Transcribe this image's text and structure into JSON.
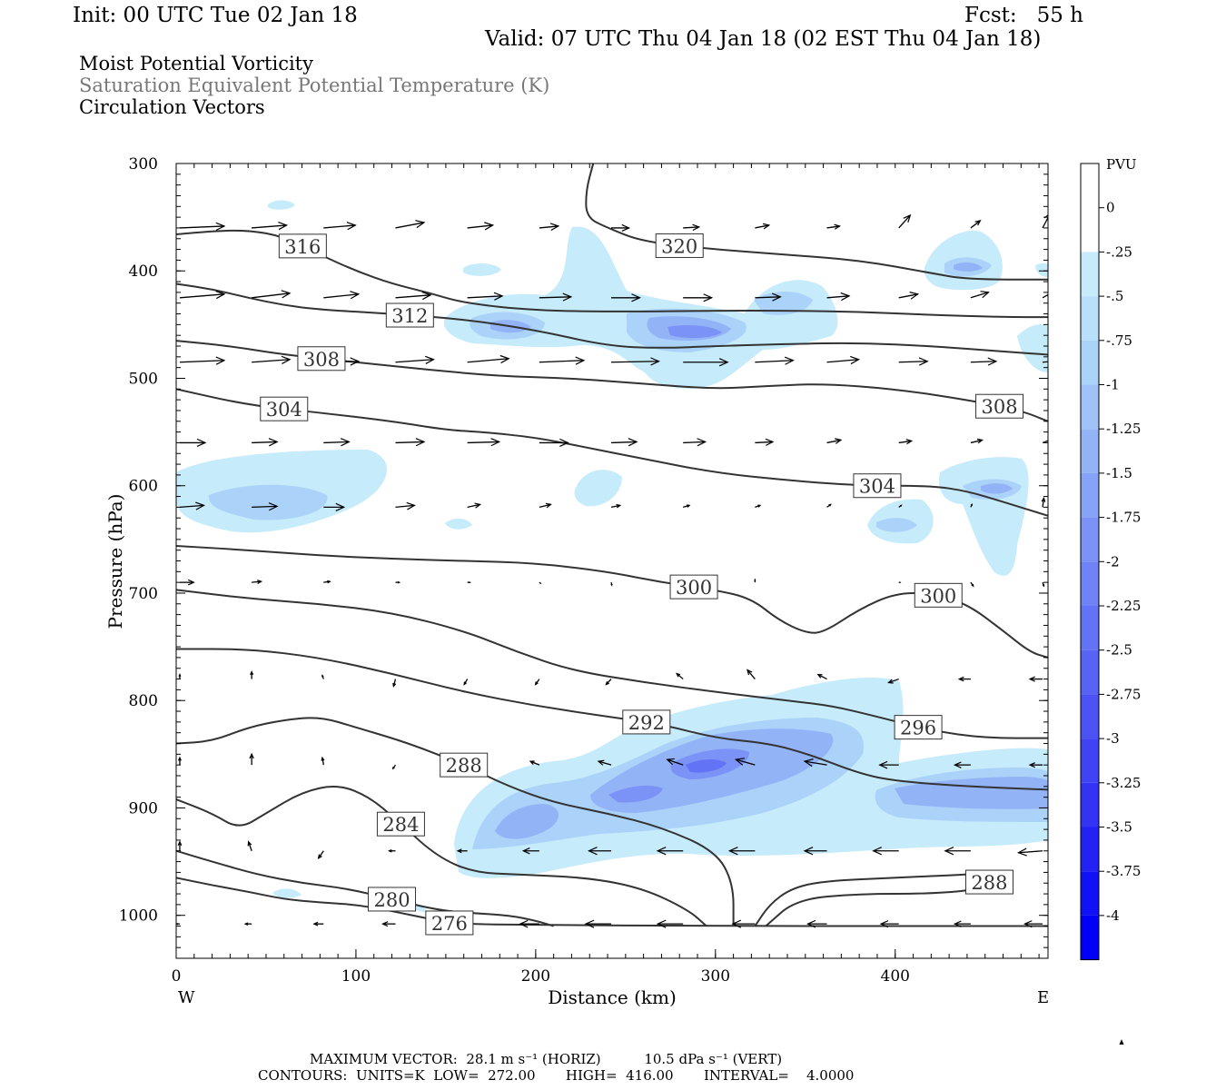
{
  "header": {
    "init": "Init: 00 UTC Tue 02 Jan 18",
    "fcst": "Fcst:   55 h",
    "valid": "Valid: 07 UTC Thu 04 Jan 18 (02 EST Thu 04 Jan 18)"
  },
  "fields": {
    "line1": "Moist Potential Vorticity",
    "line2": "Saturation Equivalent Potential Temperature (K)",
    "line3": "Circulation Vectors"
  },
  "chart_data": {
    "type": "contour",
    "xlabel": "Distance (km)",
    "ylabel": "Pressure (hPa)",
    "xlim": [
      0,
      485
    ],
    "ylim": [
      1040,
      300
    ],
    "x_ticks": [
      0,
      100,
      200,
      300,
      400
    ],
    "y_ticks": [
      300,
      400,
      500,
      600,
      700,
      800,
      900,
      1000
    ],
    "left_end_label": "W",
    "right_end_label": "E",
    "colorbar": {
      "unit": "PVU",
      "labels": [
        "0",
        "-.25",
        "-.5",
        "-.75",
        "-1",
        "-1.25",
        "-1.5",
        "-1.75",
        "-2",
        "-2.25",
        "-2.5",
        "-2.75",
        "-3",
        "-3.25",
        "-3.5",
        "-3.75",
        "-4"
      ],
      "colors": [
        "#ffffff",
        "#ffffff",
        "#c6ebfb",
        "#b9e0fa",
        "#abd2f9",
        "#9fc3f8",
        "#93b3f7",
        "#87a3f7",
        "#7b93f6",
        "#6f83f6",
        "#6373f5",
        "#5763f5",
        "#4b53f4",
        "#3f43f4",
        "#3333f4",
        "#2222f5",
        "#1111f6",
        "#0000f8"
      ]
    },
    "theta_contours": [
      {
        "label": "276",
        "points": [
          [
            0,
            965
          ],
          [
            20,
            972
          ],
          [
            40,
            978
          ],
          [
            60,
            985
          ],
          [
            80,
            988
          ],
          [
            100,
            990
          ],
          [
            120,
            996
          ],
          [
            140,
            1003
          ],
          [
            155,
            1008
          ],
          [
            200,
            1009
          ],
          [
            300,
            1010
          ],
          [
            400,
            1010
          ],
          [
            485,
            1010
          ]
        ]
      },
      {
        "label": "280",
        "points": [
          [
            0,
            940
          ],
          [
            20,
            950
          ],
          [
            45,
            962
          ],
          [
            70,
            970
          ],
          [
            95,
            975
          ],
          [
            120,
            985
          ],
          [
            145,
            995
          ],
          [
            165,
            998
          ],
          [
            185,
            1000
          ],
          [
            200,
            1005
          ],
          [
            210,
            1010
          ]
        ]
      },
      {
        "label": "284",
        "points": [
          [
            0,
            892
          ],
          [
            20,
            905
          ],
          [
            35,
            920
          ],
          [
            50,
            905
          ],
          [
            70,
            885
          ],
          [
            90,
            878
          ],
          [
            108,
            890
          ],
          [
            125,
            915
          ],
          [
            145,
            945
          ],
          [
            165,
            960
          ],
          [
            190,
            962
          ],
          [
            230,
            965
          ],
          [
            260,
            975
          ],
          [
            285,
            995
          ],
          [
            295,
            1010
          ]
        ]
      },
      {
        "label": "288",
        "points": [
          [
            0,
            840
          ],
          [
            20,
            838
          ],
          [
            40,
            825
          ],
          [
            60,
            818
          ],
          [
            80,
            815
          ],
          [
            100,
            825
          ],
          [
            130,
            840
          ],
          [
            160,
            860
          ],
          [
            185,
            880
          ],
          [
            210,
            895
          ],
          [
            240,
            905
          ],
          [
            270,
            918
          ],
          [
            300,
            940
          ],
          [
            310,
            970
          ],
          [
            310,
            1010
          ]
        ]
      },
      {
        "label": "288",
        "points": [
          [
            322,
            1010
          ],
          [
            330,
            990
          ],
          [
            342,
            975
          ],
          [
            360,
            968
          ],
          [
            400,
            965
          ],
          [
            440,
            962
          ],
          [
            453,
            960
          ],
          [
            452,
            975
          ],
          [
            420,
            980
          ],
          [
            380,
            980
          ],
          [
            345,
            985
          ],
          [
            328,
            1010
          ]
        ]
      },
      {
        "label": "292",
        "points": [
          [
            0,
            752
          ],
          [
            40,
            752
          ],
          [
            80,
            760
          ],
          [
            120,
            775
          ],
          [
            160,
            792
          ],
          [
            200,
            805
          ],
          [
            240,
            815
          ],
          [
            270,
            822
          ],
          [
            300,
            835
          ],
          [
            330,
            840
          ],
          [
            352,
            850
          ],
          [
            380,
            868
          ],
          [
            400,
            875
          ],
          [
            440,
            880
          ],
          [
            485,
            883
          ]
        ]
      },
      {
        "label": "296",
        "points": [
          [
            0,
            697
          ],
          [
            40,
            705
          ],
          [
            80,
            710
          ],
          [
            120,
            718
          ],
          [
            160,
            735
          ],
          [
            190,
            755
          ],
          [
            220,
            772
          ],
          [
            260,
            783
          ],
          [
            300,
            792
          ],
          [
            340,
            800
          ],
          [
            365,
            805
          ],
          [
            390,
            815
          ],
          [
            420,
            828
          ],
          [
            450,
            835
          ],
          [
            485,
            835
          ]
        ]
      },
      {
        "label": "300",
        "points": [
          [
            0,
            656
          ],
          [
            40,
            660
          ],
          [
            80,
            665
          ],
          [
            120,
            668
          ],
          [
            160,
            670
          ],
          [
            200,
            672
          ],
          [
            240,
            680
          ],
          [
            270,
            690
          ],
          [
            300,
            697
          ],
          [
            320,
            705
          ],
          [
            335,
            725
          ],
          [
            350,
            737
          ],
          [
            360,
            737
          ],
          [
            380,
            715
          ],
          [
            400,
            700
          ],
          [
            420,
            700
          ],
          [
            440,
            710
          ],
          [
            460,
            735
          ],
          [
            475,
            755
          ],
          [
            485,
            760
          ]
        ]
      },
      {
        "label": "304",
        "points": [
          [
            0,
            510
          ],
          [
            40,
            525
          ],
          [
            80,
            532
          ],
          [
            120,
            540
          ],
          [
            150,
            548
          ],
          [
            170,
            550
          ],
          [
            200,
            555
          ],
          [
            230,
            565
          ],
          [
            260,
            575
          ],
          [
            300,
            588
          ],
          [
            340,
            595
          ],
          [
            380,
            600
          ],
          [
            420,
            600
          ],
          [
            440,
            605
          ],
          [
            460,
            615
          ],
          [
            485,
            628
          ]
        ]
      },
      {
        "label": "308",
        "points": [
          [
            0,
            465
          ],
          [
            30,
            470
          ],
          [
            60,
            478
          ],
          [
            100,
            485
          ],
          [
            140,
            492
          ],
          [
            180,
            498
          ],
          [
            220,
            500
          ],
          [
            260,
            505
          ],
          [
            300,
            510
          ],
          [
            330,
            507
          ],
          [
            360,
            505
          ],
          [
            400,
            510
          ],
          [
            440,
            520
          ],
          [
            470,
            530
          ],
          [
            485,
            540
          ]
        ]
      },
      {
        "label": "312",
        "points": [
          [
            0,
            412
          ],
          [
            20,
            417
          ],
          [
            40,
            425
          ],
          [
            60,
            432
          ],
          [
            80,
            436
          ],
          [
            120,
            440
          ],
          [
            160,
            445
          ],
          [
            200,
            455
          ],
          [
            240,
            470
          ],
          [
            270,
            472
          ],
          [
            300,
            470
          ],
          [
            340,
            468
          ],
          [
            380,
            467
          ],
          [
            420,
            470
          ],
          [
            460,
            475
          ],
          [
            485,
            478
          ]
        ]
      },
      {
        "label": "316",
        "points": [
          [
            0,
            366
          ],
          [
            20,
            363
          ],
          [
            40,
            362
          ],
          [
            60,
            368
          ],
          [
            80,
            385
          ],
          [
            100,
            400
          ],
          [
            120,
            412
          ],
          [
            140,
            420
          ],
          [
            160,
            430
          ],
          [
            200,
            437
          ],
          [
            250,
            438
          ],
          [
            300,
            437
          ],
          [
            340,
            437
          ],
          [
            380,
            438
          ],
          [
            420,
            441
          ],
          [
            460,
            443
          ],
          [
            485,
            443
          ]
        ]
      },
      {
        "label": "320",
        "points": [
          [
            232,
            300
          ],
          [
            228,
            325
          ],
          [
            228,
            350
          ],
          [
            240,
            360
          ],
          [
            260,
            373
          ],
          [
            300,
            380
          ],
          [
            340,
            385
          ],
          [
            380,
            390
          ],
          [
            420,
            402
          ],
          [
            440,
            408
          ],
          [
            485,
            408
          ]
        ]
      }
    ]
  },
  "footer": {
    "line1": "MAXIMUM VECTOR:  28.1 m s⁻¹ (HORIZ)          10.5 dPa s⁻¹ (VERT)",
    "line2": "CONTOURS:  UNITS=K  LOW=  272.00       HIGH=  416.00       INTERVAL=    4.0000"
  }
}
